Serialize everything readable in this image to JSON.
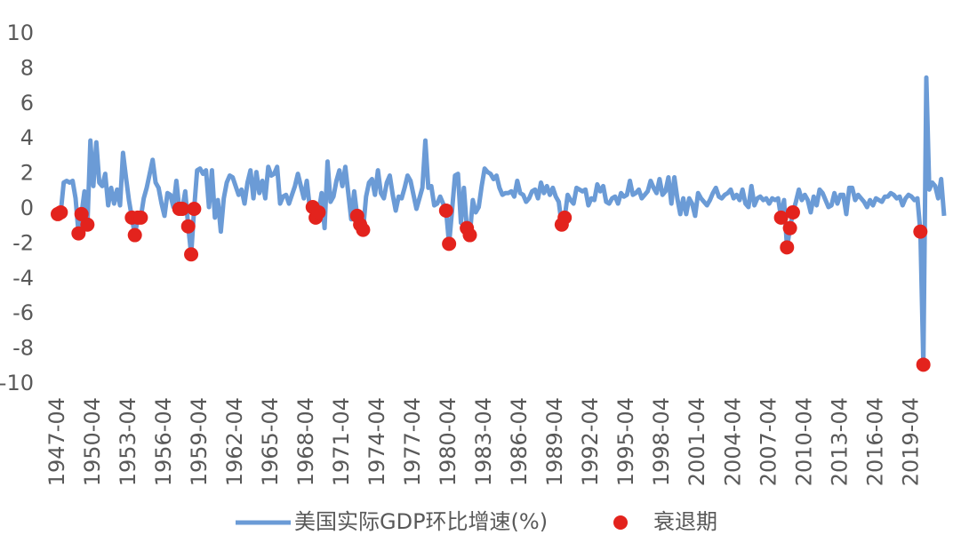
{
  "chart_data": {
    "type": "line",
    "categories": [
      "1947-04",
      null,
      null,
      null,
      null,
      null,
      null,
      null,
      null,
      null,
      null,
      null,
      "1950-04",
      null,
      null,
      null,
      null,
      null,
      null,
      null,
      null,
      null,
      null,
      null,
      "1953-04",
      null,
      null,
      null,
      null,
      null,
      null,
      null,
      null,
      null,
      null,
      null,
      "1956-04",
      null,
      null,
      null,
      null,
      null,
      null,
      null,
      null,
      null,
      null,
      null,
      "1959-04",
      null,
      null,
      null,
      null,
      null,
      null,
      null,
      null,
      null,
      null,
      null,
      "1962-04",
      null,
      null,
      null,
      null,
      null,
      null,
      null,
      null,
      null,
      null,
      null,
      "1965-04",
      null,
      null,
      null,
      null,
      null,
      null,
      null,
      null,
      null,
      null,
      null,
      "1968-04",
      null,
      null,
      null,
      null,
      null,
      null,
      null,
      null,
      null,
      null,
      null,
      "1971-04",
      null,
      null,
      null,
      null,
      null,
      null,
      null,
      null,
      null,
      null,
      null,
      "1974-04",
      null,
      null,
      null,
      null,
      null,
      null,
      null,
      null,
      null,
      null,
      null,
      "1977-04",
      null,
      null,
      null,
      null,
      null,
      null,
      null,
      null,
      null,
      null,
      null,
      "1980-04",
      null,
      null,
      null,
      null,
      null,
      null,
      null,
      null,
      null,
      null,
      null,
      "1983-04",
      null,
      null,
      null,
      null,
      null,
      null,
      null,
      null,
      null,
      null,
      null,
      "1986-04",
      null,
      null,
      null,
      null,
      null,
      null,
      null,
      null,
      null,
      null,
      null,
      "1989-04",
      null,
      null,
      null,
      null,
      null,
      null,
      null,
      null,
      null,
      null,
      null,
      "1992-04",
      null,
      null,
      null,
      null,
      null,
      null,
      null,
      null,
      null,
      null,
      null,
      "1995-04",
      null,
      null,
      null,
      null,
      null,
      null,
      null,
      null,
      null,
      null,
      null,
      "1998-04",
      null,
      null,
      null,
      null,
      null,
      null,
      null,
      null,
      null,
      null,
      null,
      "2001-04",
      null,
      null,
      null,
      null,
      null,
      null,
      null,
      null,
      null,
      null,
      null,
      "2004-04",
      null,
      null,
      null,
      null,
      null,
      null,
      null,
      null,
      null,
      null,
      null,
      "2007-04",
      null,
      null,
      null,
      null,
      null,
      null,
      null,
      null,
      null,
      null,
      null,
      "2010-04",
      null,
      null,
      null,
      null,
      null,
      null,
      null,
      null,
      null,
      null,
      null,
      "2013-04",
      null,
      null,
      null,
      null,
      null,
      null,
      null,
      null,
      null,
      null,
      null,
      "2016-04",
      null,
      null,
      null,
      null,
      null,
      null,
      null,
      null,
      null,
      null,
      null,
      "2019-04",
      null,
      null,
      null,
      null,
      null,
      null,
      null,
      null,
      null,
      null,
      null
    ],
    "series": [
      {
        "name": "美国实际GDP环比增速(%)",
        "type": "line",
        "color": "#6b9bd6",
        "values": [
          -0.3,
          -0.2,
          1.5,
          1.6,
          1.5,
          1.6,
          0.6,
          -1.4,
          -0.3,
          1.0,
          -0.9,
          3.9,
          1.3,
          3.8,
          1.5,
          1.3,
          2.0,
          0.2,
          1.2,
          0.3,
          1.1,
          0.2,
          3.2,
          1.8,
          0.5,
          -0.5,
          -1.5,
          -0.5,
          -0.5,
          0.6,
          1.2,
          2.0,
          2.8,
          1.5,
          1.2,
          0.3,
          -0.4,
          0.9,
          0.8,
          0.1,
          1.6,
          0.0,
          0.0,
          1.0,
          -1.0,
          -2.6,
          0.0,
          2.2,
          2.3,
          2.0,
          2.2,
          0.1,
          2.2,
          -0.5,
          0.5,
          -1.3,
          0.6,
          1.5,
          1.9,
          1.8,
          1.3,
          0.8,
          1.1,
          0.3,
          1.5,
          2.2,
          0.6,
          2.1,
          0.9,
          1.6,
          0.6,
          2.4,
          1.9,
          2.0,
          2.4,
          0.3,
          0.7,
          0.8,
          0.3,
          0.8,
          1.3,
          2.0,
          1.3,
          0.6,
          1.6,
          0.1,
          0.1,
          -0.5,
          -0.2,
          0.9,
          -1.1,
          2.7,
          0.4,
          0.7,
          1.6,
          2.2,
          1.3,
          2.4,
          0.9,
          -0.6,
          1.0,
          -0.4,
          -0.9,
          -1.2,
          0.7,
          1.5,
          1.7,
          0.8,
          2.2,
          0.9,
          0.6,
          1.5,
          1.9,
          0.8,
          -0.1,
          0.7,
          0.6,
          1.2,
          1.9,
          1.6,
          0.8,
          0.0,
          0.6,
          1.2,
          3.9,
          1.2,
          1.3,
          0.2,
          0.3,
          0.7,
          0.3,
          -0.1,
          -2.0,
          -0.1,
          1.9,
          2.0,
          -0.8,
          1.2,
          -1.1,
          -1.5,
          0.5,
          -0.2,
          0.1,
          1.3,
          2.3,
          2.1,
          2.0,
          1.7,
          1.9,
          1.2,
          0.8,
          0.9,
          0.9,
          1.0,
          0.7,
          1.6,
          0.9,
          0.8,
          0.4,
          0.6,
          1.0,
          1.1,
          0.6,
          1.5,
          0.9,
          1.3,
          0.8,
          1.2,
          0.7,
          0.4,
          -0.9,
          -0.5,
          0.8,
          0.5,
          0.3,
          1.2,
          1.1,
          1.0,
          1.1,
          0.2,
          0.6,
          0.5,
          1.4,
          1.0,
          1.3,
          0.4,
          0.3,
          0.6,
          0.7,
          0.3,
          0.9,
          0.7,
          0.8,
          1.6,
          0.8,
          0.9,
          1.1,
          0.6,
          0.8,
          1.0,
          1.6,
          1.2,
          0.9,
          1.7,
          0.8,
          1.0,
          1.8,
          0.3,
          1.8,
          0.6,
          -0.3,
          0.6,
          -0.3,
          0.6,
          0.3,
          -0.4,
          0.9,
          0.6,
          0.4,
          0.2,
          0.5,
          0.9,
          1.2,
          0.7,
          0.6,
          0.8,
          0.9,
          1.1,
          0.6,
          0.8,
          0.5,
          1.1,
          0.3,
          0.1,
          1.3,
          0.2,
          0.6,
          0.7,
          0.5,
          0.6,
          0.3,
          0.6,
          0.5,
          0.6,
          -0.5,
          0.5,
          -2.2,
          -1.1,
          -0.2,
          0.4,
          1.1,
          0.5,
          0.8,
          0.5,
          -0.2,
          0.7,
          0.2,
          1.1,
          0.9,
          0.5,
          0.1,
          0.2,
          0.9,
          0.3,
          0.8,
          0.8,
          -0.3,
          1.2,
          1.2,
          0.5,
          0.8,
          0.6,
          0.4,
          0.1,
          0.5,
          0.2,
          0.6,
          0.5,
          0.4,
          0.7,
          0.7,
          0.9,
          0.8,
          0.6,
          0.7,
          0.2,
          0.6,
          0.8,
          0.7,
          0.5,
          0.6,
          -1.3,
          -8.9,
          7.5,
          1.1,
          1.5,
          1.3,
          0.6,
          1.7,
          -0.4
        ]
      },
      {
        "name": "衰退期",
        "type": "scatter",
        "color": "#e3231d",
        "values": [
          -0.3,
          -0.2,
          null,
          null,
          null,
          null,
          null,
          -1.4,
          -0.3,
          null,
          -0.9,
          null,
          null,
          null,
          null,
          null,
          null,
          null,
          null,
          null,
          null,
          null,
          null,
          null,
          null,
          -0.5,
          -1.5,
          -0.5,
          -0.5,
          null,
          null,
          null,
          null,
          null,
          null,
          null,
          null,
          null,
          null,
          null,
          null,
          0.0,
          0.0,
          null,
          -1.0,
          -2.6,
          0.0,
          null,
          null,
          null,
          null,
          null,
          null,
          null,
          null,
          null,
          null,
          null,
          null,
          null,
          null,
          null,
          null,
          null,
          null,
          null,
          null,
          null,
          null,
          null,
          null,
          null,
          null,
          null,
          null,
          null,
          null,
          null,
          null,
          null,
          null,
          null,
          null,
          null,
          null,
          null,
          0.1,
          -0.5,
          -0.2,
          null,
          null,
          null,
          null,
          null,
          null,
          null,
          null,
          null,
          null,
          null,
          null,
          -0.4,
          -0.9,
          -1.2,
          null,
          null,
          null,
          null,
          null,
          null,
          null,
          null,
          null,
          null,
          null,
          null,
          null,
          null,
          null,
          null,
          null,
          null,
          null,
          null,
          null,
          null,
          null,
          null,
          null,
          null,
          null,
          -0.1,
          -2.0,
          null,
          null,
          null,
          null,
          null,
          -1.1,
          -1.5,
          null,
          null,
          null,
          null,
          null,
          null,
          null,
          null,
          null,
          null,
          null,
          null,
          null,
          null,
          null,
          null,
          null,
          null,
          null,
          null,
          null,
          null,
          null,
          null,
          null,
          null,
          null,
          null,
          null,
          null,
          -0.9,
          -0.5,
          null,
          null,
          null,
          null,
          null,
          null,
          null,
          null,
          null,
          null,
          null,
          null,
          null,
          null,
          null,
          null,
          null,
          null,
          null,
          null,
          null,
          null,
          null,
          null,
          null,
          null,
          null,
          null,
          null,
          null,
          null,
          null,
          null,
          null,
          null,
          null,
          null,
          null,
          null,
          null,
          null,
          null,
          null,
          null,
          null,
          null,
          null,
          null,
          null,
          null,
          null,
          null,
          null,
          null,
          null,
          null,
          null,
          null,
          null,
          null,
          null,
          null,
          null,
          null,
          null,
          null,
          null,
          null,
          null,
          null,
          null,
          null,
          -0.5,
          null,
          -2.2,
          -1.1,
          -0.2,
          null,
          null,
          null,
          null,
          null,
          null,
          null,
          null,
          null,
          null,
          null,
          null,
          null,
          null,
          null,
          null,
          null,
          null,
          null,
          null,
          null,
          null,
          null,
          null,
          null,
          null,
          null,
          null,
          null,
          null,
          null,
          null,
          null,
          null,
          null,
          null,
          null,
          null,
          null,
          null,
          null,
          null,
          -1.3,
          -8.9,
          null,
          null,
          null,
          null,
          null,
          null,
          null
        ]
      }
    ],
    "ylim": [
      -10,
      10
    ],
    "yticks": [
      10,
      8,
      6,
      4,
      2,
      0,
      -2,
      -4,
      -6,
      -8,
      -10
    ],
    "grid": false,
    "legend": "bottom"
  }
}
